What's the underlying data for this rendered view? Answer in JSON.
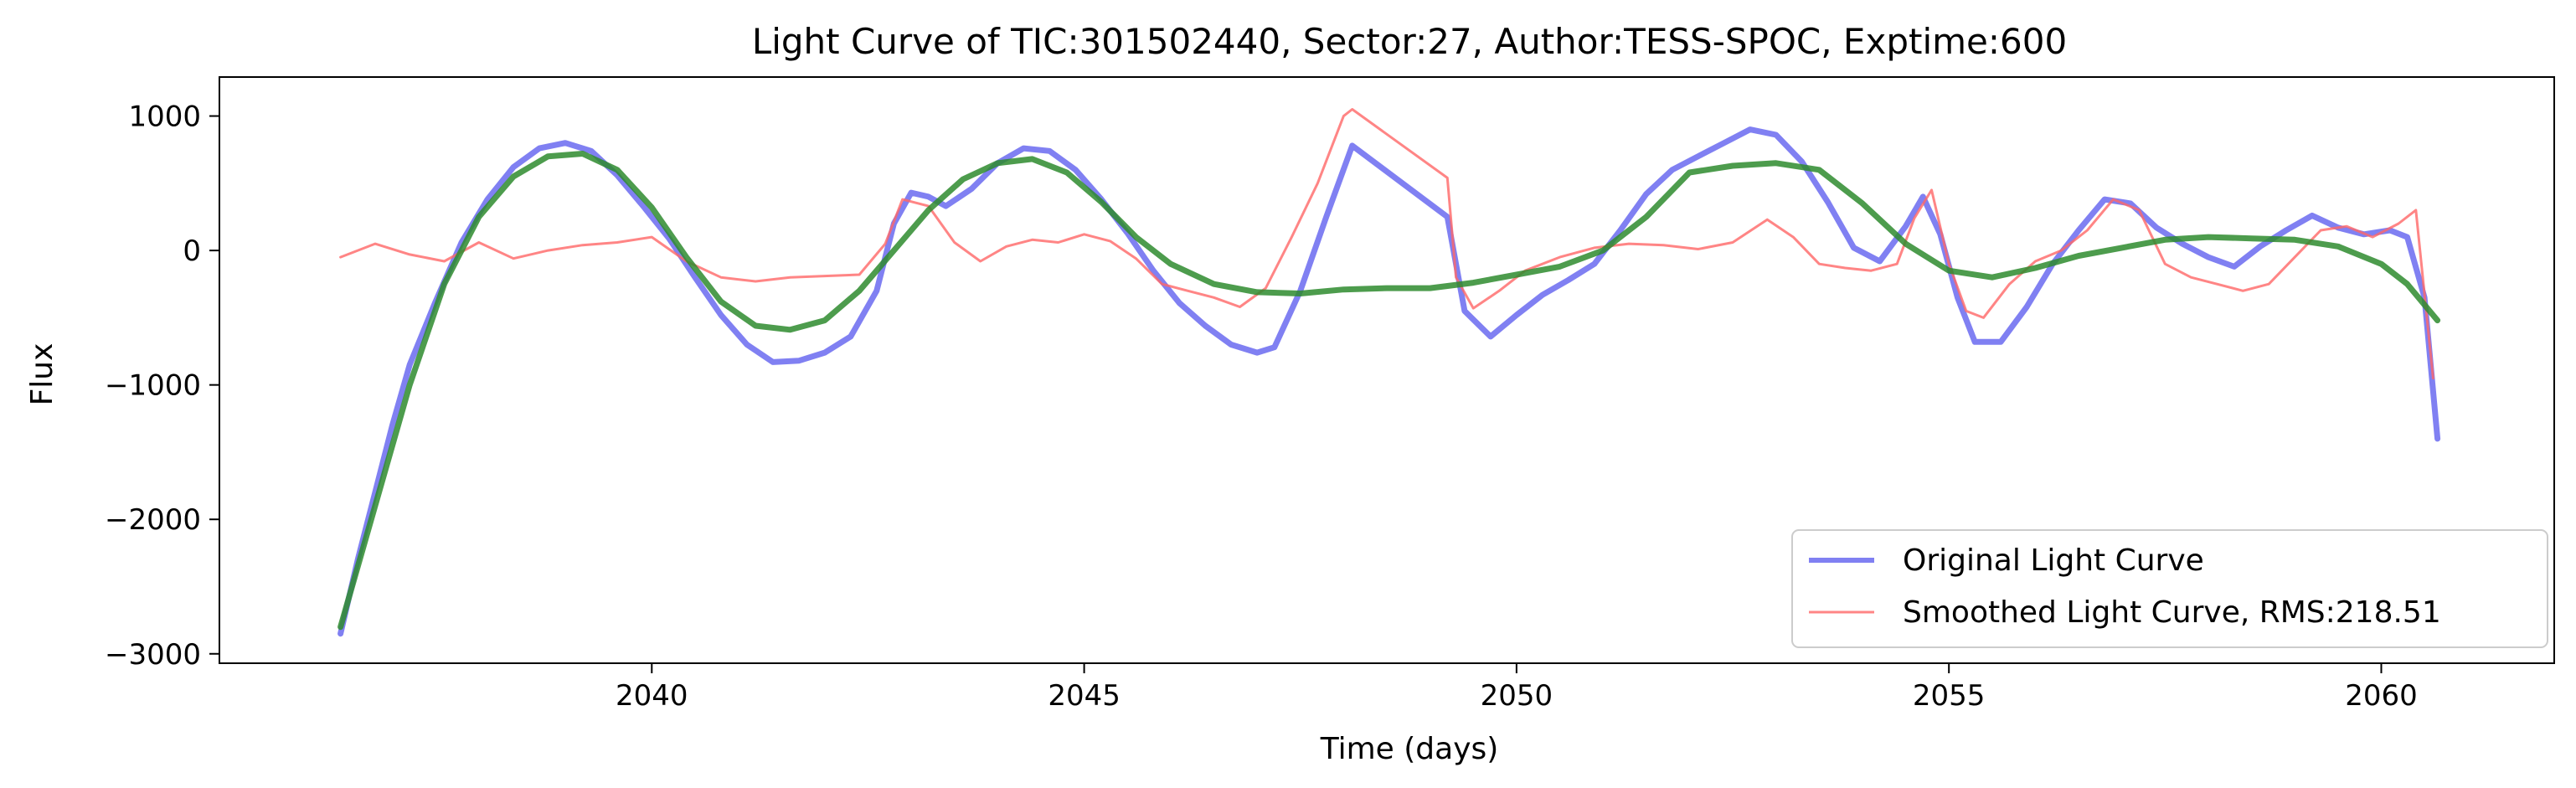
{
  "chart_data": {
    "type": "line",
    "title": "Light Curve of TIC:301502440, Sector:27, Author:TESS-SPOC, Exptime:600",
    "xlabel": "Time (days)",
    "ylabel": "Flux",
    "xlim": [
      2035.0,
      2062.0
    ],
    "ylim": [
      -3070,
      1290
    ],
    "x_ticks": [
      2040,
      2045,
      2050,
      2055,
      2060
    ],
    "y_ticks": [
      -3000,
      -2000,
      -1000,
      0,
      1000
    ],
    "x_tick_labels": [
      "2040",
      "2045",
      "2050",
      "2055",
      "2060"
    ],
    "y_tick_labels": [
      "−3000",
      "−2000",
      "−1000",
      "0",
      "1000"
    ],
    "grid": false,
    "legend_position": "lower-right",
    "colors": {
      "original": "#5555ee",
      "smoothed": "#ff6666",
      "trend": "#2e8b2e"
    },
    "series": [
      {
        "name": "Original Light Curve",
        "x": [
          2036.4,
          2036.6,
          2036.8,
          2037.0,
          2037.2,
          2037.5,
          2037.8,
          2038.1,
          2038.4,
          2038.7,
          2039.0,
          2039.3,
          2039.6,
          2039.9,
          2040.2,
          2040.5,
          2040.8,
          2041.1,
          2041.4,
          2041.7,
          2042.0,
          2042.3,
          2042.6,
          2042.8,
          2043.0,
          2043.2,
          2043.4,
          2043.7,
          2044.0,
          2044.3,
          2044.6,
          2044.9,
          2045.2,
          2045.5,
          2045.8,
          2046.1,
          2046.4,
          2046.7,
          2047.0,
          2047.2,
          2047.5,
          2047.8,
          2048.1,
          2049.2,
          2049.4,
          2049.7,
          2050.0,
          2050.3,
          2050.6,
          2050.9,
          2051.2,
          2051.5,
          2051.8,
          2052.1,
          2052.4,
          2052.7,
          2053.0,
          2053.3,
          2053.6,
          2053.9,
          2054.2,
          2054.5,
          2054.7,
          2054.9,
          2055.1,
          2055.3,
          2055.6,
          2055.9,
          2056.2,
          2056.5,
          2056.8,
          2057.1,
          2057.4,
          2057.7,
          2058.0,
          2058.3,
          2058.6,
          2058.9,
          2059.2,
          2059.5,
          2059.8,
          2060.1,
          2060.3,
          2060.5,
          2060.65
        ],
        "y": [
          -2850,
          -2300,
          -1800,
          -1300,
          -850,
          -380,
          60,
          380,
          620,
          760,
          800,
          740,
          560,
          330,
          90,
          -200,
          -480,
          -700,
          -830,
          -820,
          -760,
          -640,
          -300,
          200,
          430,
          400,
          330,
          460,
          650,
          760,
          740,
          600,
          380,
          130,
          -150,
          -390,
          -560,
          -700,
          -760,
          -720,
          -300,
          250,
          780,
          250,
          -450,
          -640,
          -480,
          -330,
          -220,
          -100,
          150,
          420,
          600,
          700,
          800,
          900,
          860,
          660,
          360,
          20,
          -80,
          180,
          400,
          120,
          -350,
          -680,
          -680,
          -420,
          -100,
          150,
          380,
          350,
          170,
          50,
          -50,
          -120,
          30,
          150,
          260,
          170,
          120,
          150,
          100,
          -350,
          -1400
        ]
      },
      {
        "name": "Smoothed Light Curve, RMS:218.51",
        "x": [
          2036.4,
          2036.8,
          2037.2,
          2037.6,
          2038.0,
          2038.4,
          2038.8,
          2039.2,
          2039.6,
          2040.0,
          2040.4,
          2040.8,
          2041.2,
          2041.6,
          2042.0,
          2042.4,
          2042.7,
          2042.9,
          2043.2,
          2043.5,
          2043.8,
          2044.1,
          2044.4,
          2044.7,
          2045.0,
          2045.3,
          2045.6,
          2045.9,
          2046.2,
          2046.5,
          2046.8,
          2047.1,
          2047.4,
          2047.7,
          2048.0,
          2048.1,
          2049.2,
          2049.3,
          2049.5,
          2049.8,
          2050.1,
          2050.5,
          2050.9,
          2051.3,
          2051.7,
          2052.1,
          2052.5,
          2052.9,
          2053.2,
          2053.5,
          2053.8,
          2054.1,
          2054.4,
          2054.6,
          2054.8,
          2055.0,
          2055.2,
          2055.4,
          2055.7,
          2056.0,
          2056.3,
          2056.6,
          2056.9,
          2057.2,
          2057.5,
          2057.8,
          2058.1,
          2058.4,
          2058.7,
          2059.0,
          2059.3,
          2059.6,
          2059.9,
          2060.2,
          2060.4,
          2060.6
        ],
        "y": [
          -50,
          50,
          -30,
          -80,
          60,
          -60,
          0,
          40,
          60,
          100,
          -80,
          -200,
          -230,
          -200,
          -190,
          -180,
          50,
          380,
          330,
          60,
          -80,
          30,
          80,
          60,
          120,
          70,
          -60,
          -250,
          -300,
          -350,
          -420,
          -280,
          100,
          500,
          1000,
          1050,
          540,
          -200,
          -430,
          -300,
          -150,
          -50,
          20,
          50,
          40,
          10,
          60,
          230,
          100,
          -100,
          -130,
          -150,
          -100,
          240,
          450,
          -100,
          -450,
          -500,
          -250,
          -80,
          0,
          150,
          380,
          300,
          -100,
          -200,
          -250,
          -300,
          -250,
          -50,
          150,
          180,
          100,
          200,
          300,
          -950
        ]
      },
      {
        "name": "",
        "x": [
          2036.4,
          2036.8,
          2037.2,
          2037.6,
          2038.0,
          2038.4,
          2038.8,
          2039.2,
          2039.6,
          2040.0,
          2040.4,
          2040.8,
          2041.2,
          2041.6,
          2042.0,
          2042.4,
          2042.8,
          2043.2,
          2043.6,
          2044.0,
          2044.4,
          2044.8,
          2045.2,
          2045.6,
          2046.0,
          2046.5,
          2047.0,
          2047.5,
          2048.0,
          2048.5,
          2049.0,
          2049.5,
          2050.0,
          2050.5,
          2051.0,
          2051.5,
          2052.0,
          2052.5,
          2053.0,
          2053.5,
          2054.0,
          2054.5,
          2055.0,
          2055.5,
          2056.0,
          2056.5,
          2057.0,
          2057.5,
          2058.0,
          2058.5,
          2059.0,
          2059.5,
          2060.0,
          2060.3,
          2060.65
        ],
        "y": [
          -2800,
          -1900,
          -1000,
          -250,
          250,
          550,
          700,
          720,
          600,
          320,
          -50,
          -380,
          -560,
          -590,
          -520,
          -300,
          0,
          300,
          530,
          650,
          680,
          580,
          360,
          100,
          -100,
          -250,
          -310,
          -320,
          -290,
          -280,
          -280,
          -240,
          -180,
          -120,
          0,
          250,
          580,
          630,
          650,
          600,
          350,
          50,
          -150,
          -200,
          -130,
          -40,
          20,
          80,
          100,
          90,
          80,
          30,
          -100,
          -250,
          -520
        ]
      }
    ]
  }
}
